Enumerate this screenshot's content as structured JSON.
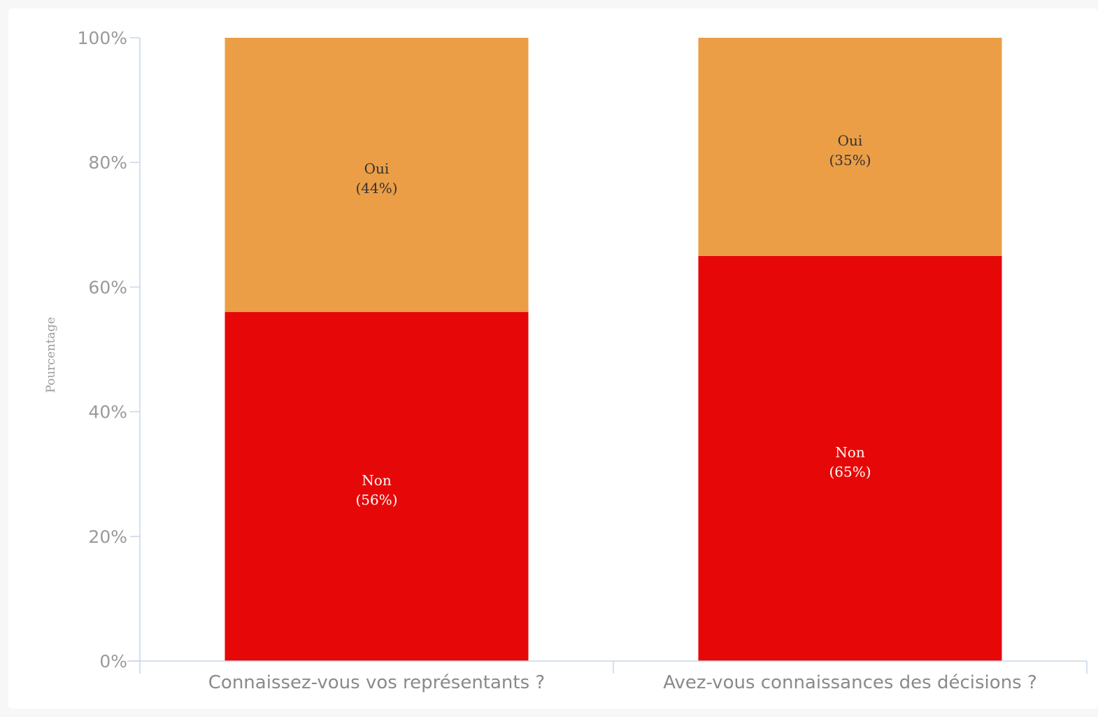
{
  "chart_data": {
    "type": "bar",
    "stacked": true,
    "categories": [
      "Connaissez-vous vos représentants ?",
      "Avez-vous connaissances des décisions ?"
    ],
    "series": [
      {
        "name": "Non",
        "values": [
          56,
          65
        ],
        "color": "#e60808",
        "label_color": "#ffffff",
        "percent_labels": [
          "(56%)",
          "(65%)"
        ]
      },
      {
        "name": "Oui",
        "values": [
          44,
          35
        ],
        "color": "#eb9e45",
        "label_color": "#333333",
        "percent_labels": [
          "(44%)",
          "(35%)"
        ]
      }
    ],
    "ylabel": "Pourcentage",
    "ylim": [
      0,
      100
    ],
    "yticks": [
      0,
      20,
      40,
      60,
      80,
      100
    ],
    "ytick_labels": [
      "0%",
      "20%",
      "40%",
      "60%",
      "80%",
      "100%"
    ],
    "axis_color": "#c9d5e8",
    "grid": false,
    "legend": "none"
  }
}
